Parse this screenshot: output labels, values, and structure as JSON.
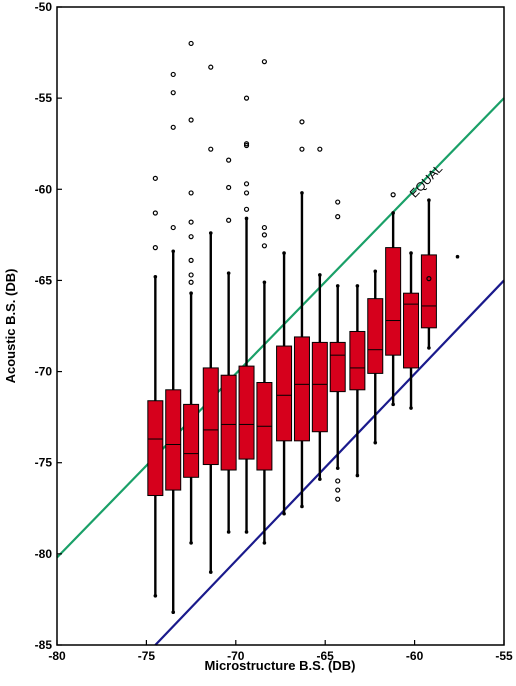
{
  "chart_data": {
    "type": "box",
    "xlabel": "Microstructure B.S. (DB)",
    "ylabel": "Acoustic B.S. (DB)",
    "xlim": [
      -80,
      -55
    ],
    "ylim": [
      -85,
      -50
    ],
    "xticks": [
      -80,
      -75,
      -70,
      -65,
      -60,
      -55
    ],
    "yticks": [
      -50,
      -55,
      -60,
      -65,
      -70,
      -75,
      -80,
      -85
    ],
    "grid": false,
    "box_color": "#d6001c",
    "reference_lines": [
      {
        "label": "EQUAL",
        "color": "#1aa068",
        "points": [
          [
            -80,
            -80.2
          ],
          [
            -55,
            -55
          ]
        ]
      },
      {
        "label": "",
        "color": "#1a1a8c",
        "points": [
          [
            -74.5,
            -85
          ],
          [
            -55,
            -65
          ]
        ]
      }
    ],
    "annotations": [
      {
        "text": "EQUAL",
        "x": -59.2,
        "y": -59.7
      }
    ],
    "boxes": [
      {
        "x": -74.5,
        "whisker_low": -82.3,
        "q1": -76.8,
        "median": -73.7,
        "q3": -71.6,
        "whisker_high": -64.8,
        "outliers": [
          -63.2,
          -61.3,
          -59.4
        ]
      },
      {
        "x": -73.5,
        "whisker_low": -83.2,
        "q1": -76.5,
        "median": -74.0,
        "q3": -71.0,
        "whisker_high": -63.4,
        "outliers": [
          -62.1,
          -56.6,
          -54.7,
          -53.7
        ]
      },
      {
        "x": -72.5,
        "whisker_low": -79.4,
        "q1": -75.8,
        "median": -74.5,
        "q3": -71.8,
        "whisker_high": -65.7,
        "outliers": [
          -65.1,
          -64.7,
          -63.9,
          -62.6,
          -61.8,
          -60.2,
          -56.2,
          -52.0
        ]
      },
      {
        "x": -71.4,
        "whisker_low": -81.0,
        "q1": -75.1,
        "median": -73.2,
        "q3": -69.8,
        "whisker_high": -62.4,
        "outliers": [
          -57.8,
          -53.3
        ]
      },
      {
        "x": -70.4,
        "whisker_low": -78.8,
        "q1": -75.4,
        "median": -72.9,
        "q3": -70.2,
        "whisker_high": -64.6,
        "outliers": [
          -61.7,
          -59.9,
          -58.4
        ]
      },
      {
        "x": -69.4,
        "whisker_low": -78.8,
        "q1": -74.8,
        "median": -72.9,
        "q3": -69.7,
        "whisker_high": -61.6,
        "outliers": [
          -61.1,
          -60.2,
          -59.7,
          -57.6,
          -57.5,
          -55.0
        ]
      },
      {
        "x": -68.4,
        "whisker_low": -79.4,
        "q1": -75.4,
        "median": -73.0,
        "q3": -70.6,
        "whisker_high": -65.1,
        "outliers": [
          -63.1,
          -62.5,
          -62.1,
          -53.0
        ]
      },
      {
        "x": -67.3,
        "whisker_low": -77.8,
        "q1": -73.8,
        "median": -71.3,
        "q3": -68.6,
        "whisker_high": -63.5
      },
      {
        "x": -66.3,
        "whisker_low": -77.4,
        "q1": -73.8,
        "median": -70.7,
        "q3": -68.1,
        "whisker_high": -60.2,
        "outliers": [
          -57.8,
          -56.3
        ]
      },
      {
        "x": -65.3,
        "whisker_low": -75.9,
        "q1": -73.3,
        "median": -70.7,
        "q3": -68.4,
        "whisker_high": -64.7,
        "outliers": [
          -57.8
        ]
      },
      {
        "x": -64.3,
        "whisker_low": -75.3,
        "q1": -71.1,
        "median": -69.1,
        "q3": -68.4,
        "whisker_high": -65.3,
        "outliers": [
          -77.0,
          -76.5,
          -76.0,
          -61.5,
          -60.7
        ]
      },
      {
        "x": -63.2,
        "whisker_low": -75.7,
        "q1": -71.0,
        "median": -69.8,
        "q3": -67.8,
        "whisker_high": -65.3
      },
      {
        "x": -62.2,
        "whisker_low": -73.9,
        "q1": -70.1,
        "median": -68.8,
        "q3": -66.0,
        "whisker_high": -64.5
      },
      {
        "x": -61.2,
        "whisker_low": -71.8,
        "q1": -69.1,
        "median": -67.2,
        "q3": -63.2,
        "whisker_high": -61.3,
        "outliers": [
          -60.3
        ]
      },
      {
        "x": -60.2,
        "whisker_low": -72.0,
        "q1": -69.8,
        "median": -66.3,
        "q3": -65.7,
        "whisker_high": -63.5
      },
      {
        "x": -59.2,
        "whisker_low": -68.7,
        "q1": -67.6,
        "median": -66.4,
        "q3": -63.6,
        "whisker_high": -60.6,
        "outliers": [
          -64.9
        ]
      },
      {
        "x": -57.6,
        "outliers": [
          -63.7
        ]
      }
    ]
  }
}
